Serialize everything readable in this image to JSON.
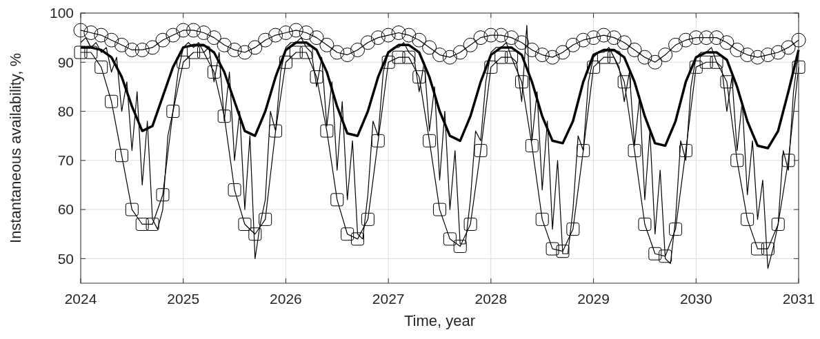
{
  "chart_data": {
    "type": "line",
    "xlabel": "Time, year",
    "ylabel": "Instantaneous availability, %",
    "xlim": [
      2024,
      2031
    ],
    "ylim": [
      45,
      100
    ],
    "xticks": [
      2024,
      2025,
      2026,
      2027,
      2028,
      2029,
      2030,
      2031
    ],
    "yticks": [
      50,
      60,
      70,
      80,
      90,
      100
    ],
    "grid": true,
    "series": [
      {
        "color": "#000000",
        "marker": "circle",
        "x": [
          2024,
          2024.1,
          2024.2,
          2024.3,
          2024.4,
          2024.5,
          2024.6,
          2024.7,
          2024.8,
          2024.9,
          2025,
          2025.1,
          2025.2,
          2025.3,
          2025.4,
          2025.5,
          2025.6,
          2025.7,
          2025.8,
          2025.9,
          2026,
          2026.1,
          2026.2,
          2026.3,
          2026.4,
          2026.5,
          2026.6,
          2026.7,
          2026.8,
          2026.9,
          2027,
          2027.1,
          2027.2,
          2027.3,
          2027.4,
          2027.5,
          2027.6,
          2027.7,
          2027.8,
          2027.9,
          2028,
          2028.1,
          2028.2,
          2028.3,
          2028.4,
          2028.5,
          2028.6,
          2028.7,
          2028.8,
          2028.9,
          2029,
          2029.1,
          2029.2,
          2029.3,
          2029.4,
          2029.5,
          2029.6,
          2029.7,
          2029.8,
          2029.9,
          2030,
          2030.1,
          2030.2,
          2030.3,
          2030.4,
          2030.5,
          2030.6,
          2030.7,
          2030.8,
          2030.9,
          2031
        ],
        "values": [
          96.5,
          96,
          95.5,
          94.5,
          93.5,
          92.5,
          92.5,
          93,
          94.5,
          95.5,
          96.5,
          96.5,
          96,
          95,
          93.5,
          92.5,
          92,
          93,
          94.5,
          95.5,
          96,
          96.5,
          96,
          95,
          93.5,
          92,
          91.5,
          92.5,
          94,
          95,
          95.5,
          96,
          95.5,
          94.5,
          93,
          91.5,
          91,
          92,
          93.5,
          95,
          95.5,
          95.5,
          95,
          94,
          92.5,
          91.5,
          91,
          92,
          93.5,
          94.5,
          95,
          95.5,
          95,
          94,
          92.5,
          91,
          90,
          91.5,
          93.5,
          94.5,
          95,
          95,
          95,
          94,
          92.5,
          91.5,
          91,
          91.5,
          92,
          93,
          94.5
        ]
      },
      {
        "color": "#000000",
        "marker": "none",
        "x": [
          2024,
          2024.1,
          2024.2,
          2024.3,
          2024.4,
          2024.5,
          2024.6,
          2024.7,
          2024.8,
          2024.9,
          2025,
          2025.1,
          2025.2,
          2025.3,
          2025.4,
          2025.5,
          2025.6,
          2025.7,
          2025.8,
          2025.9,
          2026,
          2026.1,
          2026.2,
          2026.3,
          2026.4,
          2026.5,
          2026.6,
          2026.7,
          2026.8,
          2026.9,
          2027,
          2027.1,
          2027.2,
          2027.3,
          2027.4,
          2027.5,
          2027.6,
          2027.7,
          2027.8,
          2027.9,
          2028,
          2028.1,
          2028.2,
          2028.3,
          2028.4,
          2028.5,
          2028.6,
          2028.7,
          2028.8,
          2028.9,
          2029,
          2029.1,
          2029.2,
          2029.3,
          2029.4,
          2029.5,
          2029.6,
          2029.7,
          2029.8,
          2029.9,
          2030,
          2030.1,
          2030.2,
          2030.3,
          2030.4,
          2030.5,
          2030.6,
          2030.7,
          2030.8,
          2030.9,
          2031
        ],
        "values": [
          93,
          93,
          92.5,
          91,
          87,
          81,
          76,
          77,
          83,
          89,
          93,
          93.5,
          93.5,
          92,
          88,
          82,
          76,
          75,
          80,
          87,
          92.5,
          94,
          94,
          92.5,
          88,
          81,
          75.5,
          75,
          80,
          87,
          92,
          93.5,
          93.5,
          92,
          87,
          80,
          75,
          74,
          79,
          86,
          91.5,
          93,
          93,
          91.5,
          86,
          79,
          74,
          73.5,
          78,
          86,
          91.5,
          92.5,
          92.5,
          91,
          86,
          79,
          73.5,
          73,
          78,
          86,
          91,
          92,
          92,
          90.5,
          85,
          78,
          73,
          72.5,
          76,
          84,
          92.5
        ]
      },
      {
        "color": "#000000",
        "marker": "square",
        "x": [
          2024,
          2024.1,
          2024.2,
          2024.3,
          2024.4,
          2024.5,
          2024.6,
          2024.7,
          2024.8,
          2024.9,
          2025,
          2025.1,
          2025.2,
          2025.3,
          2025.4,
          2025.5,
          2025.6,
          2025.7,
          2025.8,
          2025.9,
          2026,
          2026.1,
          2026.2,
          2026.3,
          2026.4,
          2026.5,
          2026.6,
          2026.7,
          2026.8,
          2026.9,
          2027,
          2027.1,
          2027.2,
          2027.3,
          2027.4,
          2027.5,
          2027.6,
          2027.7,
          2027.8,
          2027.9,
          2028,
          2028.1,
          2028.2,
          2028.3,
          2028.4,
          2028.5,
          2028.6,
          2028.7,
          2028.8,
          2028.9,
          2029,
          2029.1,
          2029.2,
          2029.3,
          2029.4,
          2029.5,
          2029.6,
          2029.7,
          2029.8,
          2029.9,
          2030,
          2030.1,
          2030.2,
          2030.3,
          2030.4,
          2030.5,
          2030.6,
          2030.7,
          2030.8,
          2030.9,
          2031
        ],
        "values": [
          92,
          92,
          89,
          82,
          71,
          60,
          57,
          57,
          63,
          80,
          90,
          92,
          92,
          88,
          79,
          64,
          57,
          55,
          58,
          76,
          90,
          92,
          92,
          87,
          76,
          62,
          55,
          54,
          58,
          74,
          90,
          91,
          91,
          87,
          74,
          60,
          54,
          52.5,
          57,
          72,
          89,
          91,
          91,
          86,
          73,
          58,
          52,
          51.5,
          56,
          72,
          89,
          91,
          91,
          86,
          72,
          57,
          51,
          50.5,
          56,
          72,
          89,
          90,
          90,
          86,
          70,
          58,
          52,
          52,
          57,
          70,
          89
        ]
      },
      {
        "color": "#000000",
        "marker": "none",
        "x": [
          2024,
          2024.05,
          2024.1,
          2024.15,
          2024.2,
          2024.25,
          2024.3,
          2024.35,
          2024.4,
          2024.45,
          2024.5,
          2024.55,
          2024.6,
          2024.65,
          2024.7,
          2024.75,
          2024.8,
          2024.85,
          2024.9,
          2024.95,
          2025,
          2025.05,
          2025.1,
          2025.15,
          2025.2,
          2025.25,
          2025.3,
          2025.35,
          2025.4,
          2025.45,
          2025.5,
          2025.55,
          2025.6,
          2025.65,
          2025.7,
          2025.75,
          2025.8,
          2025.85,
          2025.9,
          2025.95,
          2026,
          2026.05,
          2026.1,
          2026.15,
          2026.2,
          2026.25,
          2026.3,
          2026.35,
          2026.4,
          2026.45,
          2026.5,
          2026.55,
          2026.6,
          2026.65,
          2026.7,
          2026.75,
          2026.8,
          2026.85,
          2026.9,
          2026.95,
          2027,
          2027.05,
          2027.1,
          2027.15,
          2027.2,
          2027.25,
          2027.3,
          2027.35,
          2027.4,
          2027.45,
          2027.5,
          2027.55,
          2027.6,
          2027.65,
          2027.7,
          2027.75,
          2027.8,
          2027.85,
          2027.9,
          2027.95,
          2028,
          2028.05,
          2028.1,
          2028.15,
          2028.2,
          2028.25,
          2028.3,
          2028.35,
          2028.4,
          2028.45,
          2028.5,
          2028.55,
          2028.6,
          2028.65,
          2028.7,
          2028.75,
          2028.8,
          2028.85,
          2028.9,
          2028.95,
          2029,
          2029.05,
          2029.1,
          2029.15,
          2029.2,
          2029.25,
          2029.3,
          2029.35,
          2029.4,
          2029.45,
          2029.5,
          2029.55,
          2029.6,
          2029.65,
          2029.7,
          2029.75,
          2029.8,
          2029.85,
          2029.9,
          2029.95,
          2030,
          2030.05,
          2030.1,
          2030.15,
          2030.2,
          2030.25,
          2030.3,
          2030.35,
          2030.4,
          2030.45,
          2030.5,
          2030.55,
          2030.6,
          2030.65,
          2030.7,
          2030.75,
          2030.8,
          2030.85,
          2030.9,
          2030.95,
          2031
        ],
        "values": [
          94,
          95,
          93,
          94,
          92,
          93,
          88,
          91,
          80,
          86,
          72,
          84,
          65,
          78,
          58,
          56,
          60,
          75,
          80,
          88,
          93,
          94,
          93,
          94,
          92,
          93,
          86,
          92,
          78,
          88,
          70,
          80,
          60,
          75,
          50,
          57,
          62,
          80,
          76,
          88,
          93,
          94,
          94,
          95,
          93,
          92,
          85,
          91,
          77,
          86,
          68,
          82,
          62,
          74,
          55,
          54,
          63,
          78,
          75,
          88,
          92,
          93,
          93,
          94,
          92,
          91,
          84,
          90,
          76,
          85,
          66,
          80,
          60,
          72,
          53,
          53,
          62,
          76,
          74,
          86,
          92,
          93,
          93,
          94,
          91,
          90,
          82,
          97.5,
          74,
          84,
          64,
          78,
          56,
          70,
          51,
          51,
          60,
          75,
          72,
          86,
          91,
          92,
          92,
          93,
          91,
          89,
          82,
          88,
          73,
          83,
          62,
          76,
          55,
          68,
          50,
          49,
          58,
          74,
          70,
          85,
          91,
          92,
          92,
          93,
          90,
          89,
          80,
          87,
          72,
          82,
          63,
          74,
          58,
          66,
          48,
          52,
          57,
          72,
          68,
          84,
          92
        ]
      }
    ]
  }
}
